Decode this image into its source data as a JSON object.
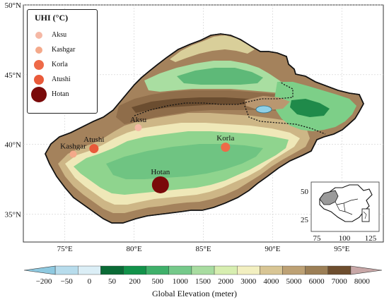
{
  "legend": {
    "title": "UHI (°C)",
    "items": [
      {
        "label": "Aksu",
        "color": "#f5b8a5",
        "size": "small"
      },
      {
        "label": "Kashgar",
        "color": "#f4a98a",
        "size": "small"
      },
      {
        "label": "Korla",
        "color": "#ee6a48",
        "size": "medium"
      },
      {
        "label": "Atushi",
        "color": "#e95a3a",
        "size": "medium"
      },
      {
        "label": "Hotan",
        "color": "#7a0a0a",
        "size": "large"
      }
    ]
  },
  "stations": [
    {
      "name": "Aksu",
      "lon": 80.3,
      "lat": 41.2,
      "color": "#f5b8a5",
      "size": "small"
    },
    {
      "name": "Kashgar",
      "lon": 75.6,
      "lat": 39.3,
      "color": "#f4a98a",
      "size": "small"
    },
    {
      "name": "Atushi",
      "lon": 77.1,
      "lat": 39.7,
      "color": "#e95a3a",
      "size": "medium"
    },
    {
      "name": "Korla",
      "lon": 86.6,
      "lat": 39.8,
      "color": "#ee6a48",
      "size": "medium"
    },
    {
      "name": "Hotan",
      "lon": 81.9,
      "lat": 37.1,
      "color": "#7a0a0a",
      "size": "large"
    }
  ],
  "axes": {
    "x_ticks": [
      "75°E",
      "80°E",
      "85°E",
      "90°E",
      "95°E"
    ],
    "x_values": [
      75,
      80,
      85,
      90,
      95
    ],
    "y_ticks": [
      "35°N",
      "40°N",
      "45°N",
      "50°N"
    ],
    "y_values": [
      35,
      40,
      45,
      50
    ],
    "lon_range": [
      72,
      98
    ],
    "lat_range": [
      33,
      50
    ]
  },
  "inset": {
    "x_ticks": [
      "75",
      "100",
      "125"
    ],
    "y_ticks": [
      "25",
      "50"
    ]
  },
  "colorbar": {
    "title": "Global Elevation (meter)",
    "ticks": [
      "−200",
      "−50",
      "0",
      "50",
      "200",
      "500",
      "1000",
      "1500",
      "2000",
      "3000",
      "4000",
      "5000",
      "6000",
      "7000",
      "8000"
    ],
    "colors": [
      "#8ec9e0",
      "#b7dcec",
      "#dbeef6",
      "#0a6b36",
      "#12924a",
      "#3fb06a",
      "#75c98a",
      "#a8dca0",
      "#d7eeb0",
      "#f2efc0",
      "#d8c594",
      "#bda174",
      "#9c7f56",
      "#6e4e2e",
      "#c8a7a7"
    ]
  }
}
